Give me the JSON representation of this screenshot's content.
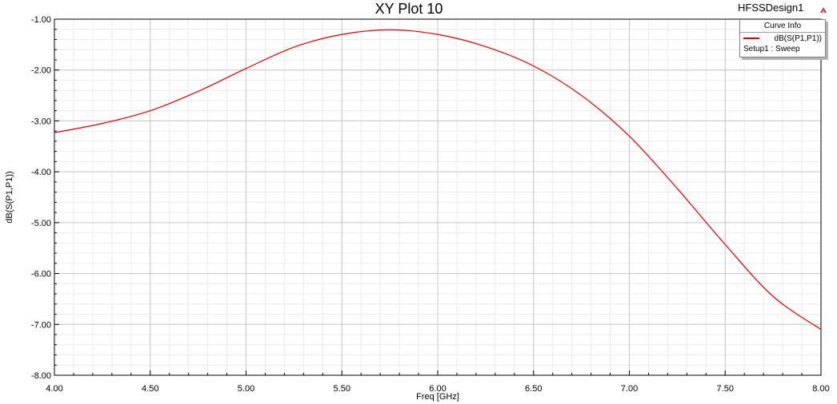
{
  "chart_data": {
    "type": "line",
    "title": "XY Plot 10",
    "design_name": "HFSSDesign1",
    "xlabel": "Freq [GHz]",
    "ylabel": "dB(S(P1,P1))",
    "xlim": [
      4.0,
      8.0
    ],
    "ylim": [
      -8.0,
      -1.0
    ],
    "x_ticks": [
      "4.00",
      "4.50",
      "5.00",
      "5.50",
      "6.00",
      "6.50",
      "7.00",
      "7.50",
      "8.00"
    ],
    "y_ticks": [
      "-1.00",
      "-2.00",
      "-3.00",
      "-4.00",
      "-5.00",
      "-6.00",
      "-7.00",
      "-8.00"
    ],
    "grid": true,
    "legend": {
      "title": "Curve Info",
      "placement": "top-right",
      "entries": [
        {
          "name": "dB(S(P1,P1))",
          "subtitle": "Setup1 : Sweep",
          "color": "#e00000"
        }
      ]
    },
    "series": [
      {
        "name": "dB(S(P1,P1))",
        "color": "#e00000",
        "x": [
          4.0,
          4.25,
          4.5,
          4.75,
          5.0,
          5.25,
          5.5,
          5.75,
          6.0,
          6.25,
          6.5,
          6.75,
          7.0,
          7.25,
          7.5,
          7.75,
          8.0
        ],
        "y": [
          -3.23,
          -3.05,
          -2.8,
          -2.42,
          -1.97,
          -1.55,
          -1.3,
          -1.21,
          -1.3,
          -1.54,
          -1.92,
          -2.5,
          -3.3,
          -4.33,
          -5.43,
          -6.45,
          -7.1
        ]
      }
    ]
  }
}
